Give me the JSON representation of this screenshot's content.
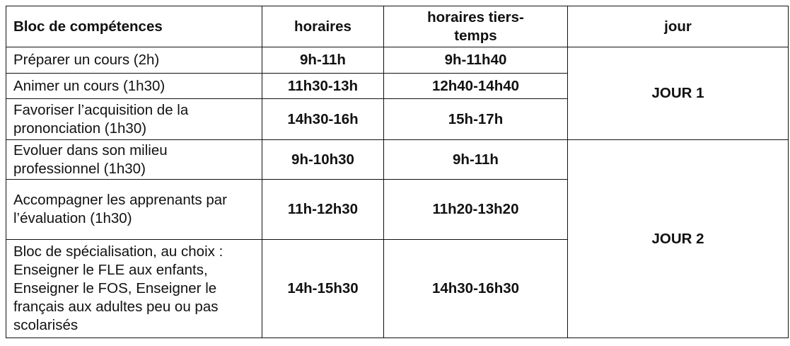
{
  "headers": [
    "Bloc de compétences",
    "horaires",
    "horaires tiers-temps",
    "jour"
  ],
  "rows": [
    {
      "skill": "Préparer un cours (2h)",
      "hours": "9h-11h",
      "hours_extra_time": "9h-11h40"
    },
    {
      "skill": "Animer un cours (1h30)",
      "hours": "11h30-13h",
      "hours_extra_time": "12h40-14h40"
    },
    {
      "skill": "Favoriser l’acquisition de la prononciation (1h30)",
      "hours": "14h30-16h",
      "hours_extra_time": "15h-17h"
    },
    {
      "skill": "Evoluer dans son milieu professionnel (1h30)",
      "hours": "9h-10h30",
      "hours_extra_time": "9h-11h"
    },
    {
      "skill": "Accompagner les apprenants par l’évaluation (1h30)",
      "hours": "11h-12h30",
      "hours_extra_time": "11h20-13h20"
    },
    {
      "skill": "Bloc de spécialisation, au choix : Enseigner le FLE aux enfants, Enseigner le FOS, Enseigner le français aux adultes peu ou pas scolarisés",
      "hours": "14h-15h30",
      "hours_extra_time": "14h30-16h30"
    }
  ],
  "days": [
    "JOUR 1",
    "JOUR 2"
  ]
}
